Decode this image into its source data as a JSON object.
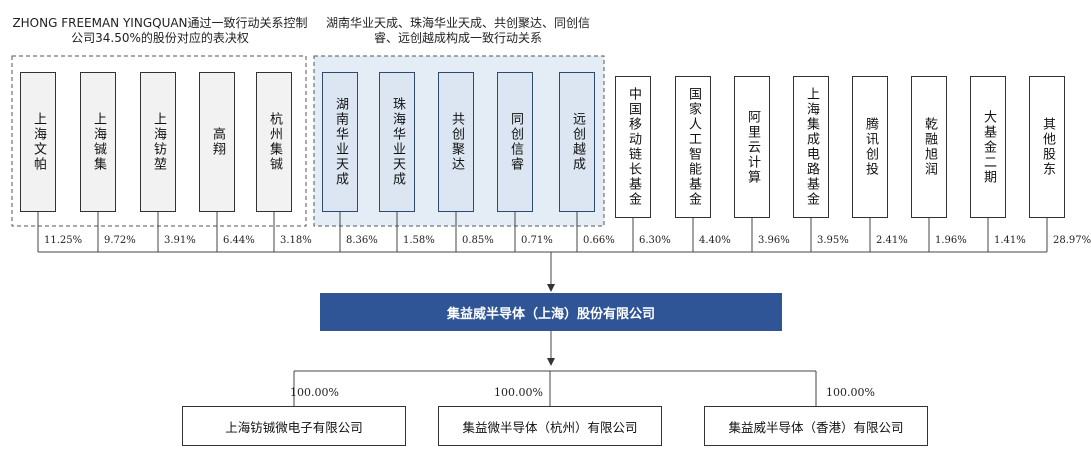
{
  "groups": [
    {
      "label": "ZHONG FREEMAN YINGQUAN通过一致行动关系控制公司34.50%的股份对应的表决权"
    },
    {
      "label": "湖南华业天成、珠海华业天成、共创聚达、同创信睿、远创越成构成一致行动关系"
    }
  ],
  "shareholders": [
    {
      "name": "上海文帕",
      "pct": "11.25%",
      "style": "gray"
    },
    {
      "name": "上海铖集",
      "pct": "9.72%",
      "style": "gray"
    },
    {
      "name": "上海钫堃",
      "pct": "3.91%",
      "style": "gray"
    },
    {
      "name": "高翔",
      "pct": "6.44%",
      "style": "gray"
    },
    {
      "name": "杭州集铖",
      "pct": "3.18%",
      "style": "gray"
    },
    {
      "name": "湖南华业天成",
      "pct": "8.36%",
      "style": "blue"
    },
    {
      "name": "珠海华业天成",
      "pct": "1.58%",
      "style": "blue"
    },
    {
      "name": "共创聚达",
      "pct": "0.85%",
      "style": "blue"
    },
    {
      "name": "同创信睿",
      "pct": "0.71%",
      "style": "blue"
    },
    {
      "name": "远创越成",
      "pct": "0.66%",
      "style": "blue"
    },
    {
      "name": "中国移动链长基金",
      "pct": "6.30%",
      "style": "plain"
    },
    {
      "name": "国家人工智能基金",
      "pct": "4.40%",
      "style": "plain"
    },
    {
      "name": "阿里云计算",
      "pct": "3.96%",
      "style": "plain"
    },
    {
      "name": "上海集成电路基金",
      "pct": "3.95%",
      "style": "plain"
    },
    {
      "name": "腾讯创投",
      "pct": "2.41%",
      "style": "plain"
    },
    {
      "name": "乾融旭润",
      "pct": "1.96%",
      "style": "plain"
    },
    {
      "name": "大基金二期",
      "pct": "1.41%",
      "style": "plain"
    },
    {
      "name": "其他股东",
      "pct": "28.97%",
      "style": "plain"
    }
  ],
  "company": {
    "name": "集益威半导体（上海）股份有限公司"
  },
  "subsidiaries": [
    {
      "name": "上海钫铖微电子有限公司",
      "pct": "100.00%"
    },
    {
      "name": "集益微半导体（杭州）有限公司",
      "pct": "100.00%"
    },
    {
      "name": "集益威半导体（香港）有限公司",
      "pct": "100.00%"
    }
  ]
}
